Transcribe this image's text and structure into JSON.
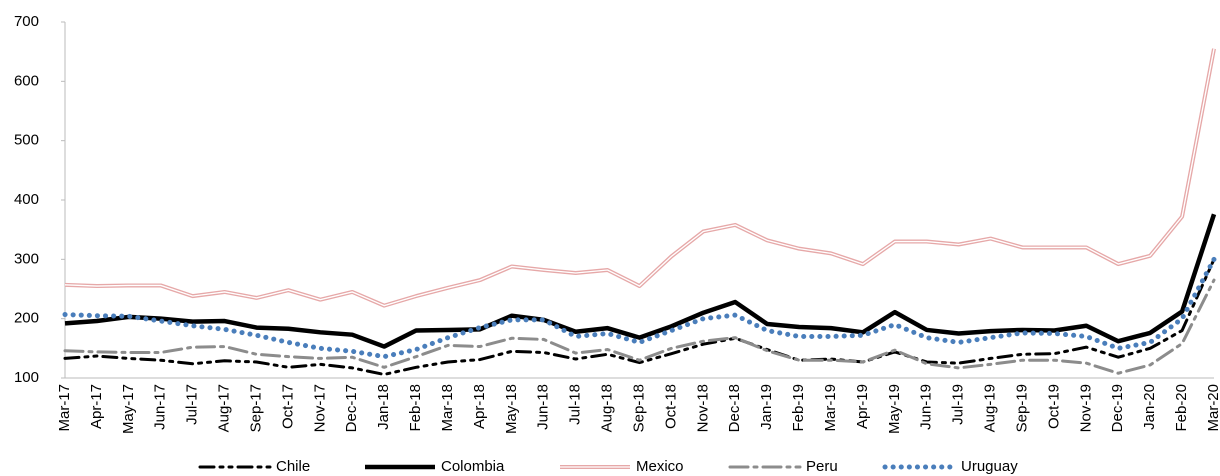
{
  "chart_data": {
    "type": "line",
    "categories": [
      "Mar-17",
      "Apr-17",
      "May-17",
      "Jun-17",
      "Jul-17",
      "Aug-17",
      "Sep-17",
      "Oct-17",
      "Nov-17",
      "Dec-17",
      "Jan-18",
      "Feb-18",
      "Mar-18",
      "Apr-18",
      "May-18",
      "Jun-18",
      "Jul-18",
      "Aug-18",
      "Sep-18",
      "Oct-18",
      "Nov-18",
      "Dec-18",
      "Jan-19",
      "Feb-19",
      "Mar-19",
      "Apr-19",
      "May-19",
      "Jun-19",
      "Jul-19",
      "Aug-19",
      "Sep-19",
      "Oct-19",
      "Nov-19",
      "Dec-19",
      "Jan-20",
      "Feb-20",
      "Mar-20"
    ],
    "series": [
      {
        "name": "Chile",
        "color": "#000000",
        "dash": "14 6 3 6 3 6",
        "width": 3,
        "values": [
          133,
          137,
          133,
          130,
          124,
          129,
          127,
          118,
          123,
          117,
          106,
          118,
          127,
          131,
          145,
          143,
          132,
          140,
          126,
          141,
          157,
          167,
          148,
          130,
          132,
          127,
          144,
          127,
          125,
          133,
          140,
          141,
          152,
          135,
          150,
          180,
          300
        ]
      },
      {
        "name": "Colombia",
        "color": "#000000",
        "width": 4.5,
        "values": [
          192,
          196,
          203,
          200,
          195,
          196,
          185,
          183,
          177,
          173,
          153,
          180,
          181,
          182,
          205,
          198,
          178,
          184,
          168,
          187,
          210,
          228,
          191,
          186,
          184,
          177,
          211,
          181,
          175,
          179,
          181,
          180,
          188,
          162,
          176,
          212,
          376
        ]
      },
      {
        "name": "Mexico",
        "color": "#e6a8a8",
        "width": 4,
        "double": true,
        "values": [
          257,
          255,
          256,
          256,
          238,
          245,
          235,
          248,
          232,
          245,
          222,
          238,
          252,
          265,
          288,
          282,
          277,
          282,
          255,
          305,
          347,
          358,
          332,
          318,
          310,
          292,
          330,
          330,
          325,
          335,
          320,
          320,
          320,
          292,
          306,
          372,
          655
        ]
      },
      {
        "name": "Peru",
        "color": "#8c8c8c",
        "dash": "18 6 3 6",
        "width": 3,
        "values": [
          146,
          144,
          143,
          143,
          152,
          153,
          140,
          136,
          133,
          135,
          118,
          136,
          155,
          153,
          167,
          165,
          142,
          148,
          130,
          150,
          162,
          168,
          146,
          130,
          130,
          127,
          147,
          124,
          117,
          123,
          130,
          130,
          125,
          108,
          122,
          158,
          265
        ]
      },
      {
        "name": "Uruguay",
        "color": "#4a7ebb",
        "dash": "0.1 8",
        "width": 5,
        "values": [
          207,
          205,
          204,
          196,
          188,
          182,
          172,
          160,
          150,
          145,
          136,
          148,
          168,
          185,
          198,
          198,
          170,
          175,
          160,
          180,
          200,
          206,
          180,
          170,
          170,
          172,
          190,
          168,
          160,
          168,
          176,
          175,
          170,
          150,
          160,
          200,
          300
        ]
      }
    ],
    "ylim": [
      100,
      700
    ],
    "yticks": [
      100,
      200,
      300,
      400,
      500,
      600,
      700
    ]
  }
}
